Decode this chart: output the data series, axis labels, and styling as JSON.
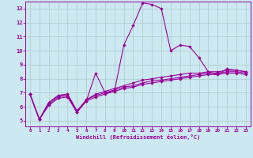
{
  "xlabel": "Windchill (Refroidissement éolien,°C)",
  "bg_color": "#cce8f0",
  "line_color": "#990099",
  "grid_color": "#aacccc",
  "xlim": [
    -0.5,
    23.5
  ],
  "ylim": [
    4.6,
    13.5
  ],
  "xticks": [
    0,
    1,
    2,
    3,
    4,
    5,
    6,
    7,
    8,
    9,
    10,
    11,
    12,
    13,
    14,
    15,
    16,
    17,
    18,
    19,
    20,
    21,
    22,
    23
  ],
  "yticks": [
    5,
    6,
    7,
    8,
    9,
    10,
    11,
    12,
    13
  ],
  "main_y": [
    6.9,
    5.1,
    6.3,
    6.8,
    6.9,
    5.7,
    6.4,
    8.4,
    7.0,
    7.1,
    10.4,
    11.8,
    13.4,
    13.3,
    13.0,
    10.0,
    10.4,
    10.3,
    9.5,
    8.5,
    8.3,
    8.7,
    8.6,
    8.5
  ],
  "line2_y": [
    6.9,
    5.1,
    6.3,
    6.8,
    6.9,
    5.7,
    6.5,
    6.9,
    7.1,
    7.3,
    7.5,
    7.7,
    7.9,
    8.0,
    8.1,
    8.2,
    8.3,
    8.4,
    8.4,
    8.5,
    8.5,
    8.6,
    8.6,
    8.5
  ],
  "line3_y": [
    6.9,
    5.1,
    6.2,
    6.7,
    6.8,
    5.6,
    6.5,
    6.8,
    7.0,
    7.2,
    7.4,
    7.5,
    7.7,
    7.85,
    7.9,
    8.0,
    8.1,
    8.2,
    8.3,
    8.4,
    8.4,
    8.5,
    8.5,
    8.4
  ],
  "line4_y": [
    6.9,
    5.1,
    6.1,
    6.6,
    6.7,
    5.6,
    6.4,
    6.7,
    6.9,
    7.1,
    7.3,
    7.4,
    7.6,
    7.7,
    7.8,
    7.9,
    8.0,
    8.1,
    8.2,
    8.3,
    8.3,
    8.4,
    8.4,
    8.3
  ]
}
